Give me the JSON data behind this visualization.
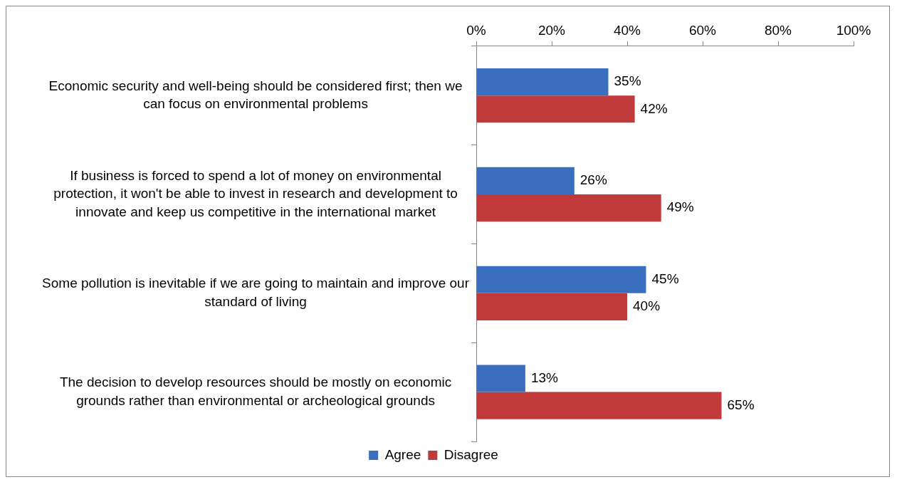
{
  "chart_data": {
    "type": "bar",
    "orientation": "horizontal",
    "categories": [
      "Economic security and well-being should be considered first; then we can focus on environmental problems",
      "If business is forced to spend a lot of money on environmental protection, it won't be able to invest in research and development to innovate and keep us competitive in the international market",
      "Some pollution is inevitable if we are going to maintain and improve our standard of living",
      "The decision to develop resources should be mostly on economic grounds rather than environmental or archeological grounds"
    ],
    "series": [
      {
        "name": "Agree",
        "color": "#3a6fc0",
        "values": [
          35,
          26,
          45,
          13
        ],
        "value_labels": [
          "35%",
          "26%",
          "45%",
          "13%"
        ]
      },
      {
        "name": "Disagree",
        "color": "#c0393b",
        "values": [
          42,
          49,
          40,
          65
        ],
        "value_labels": [
          "42%",
          "49%",
          "40%",
          "65%"
        ]
      }
    ],
    "xlim": [
      0,
      100
    ],
    "xticks": [
      {
        "value": 0,
        "label": "0%"
      },
      {
        "value": 20,
        "label": "20%"
      },
      {
        "value": 40,
        "label": "40%"
      },
      {
        "value": 60,
        "label": "60%"
      },
      {
        "value": 80,
        "label": "80%"
      },
      {
        "value": 100,
        "label": "100%"
      }
    ],
    "grid": false,
    "legend": "bottom"
  }
}
